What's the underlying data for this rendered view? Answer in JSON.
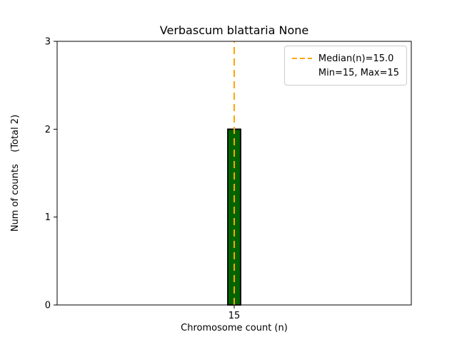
{
  "chart_data": {
    "type": "bar",
    "title": "Verbascum blattaria None",
    "xlabel": "Chromosome count (n)",
    "ylabel": "Num of counts    (Total 2)",
    "categories": [
      "15"
    ],
    "values": [
      2
    ],
    "total_counts": 2,
    "ylim": [
      0,
      3
    ],
    "yticks": [
      0,
      1,
      2,
      3
    ],
    "xticks": [
      "15"
    ],
    "grid": false,
    "bar_color": "#006400",
    "bar_edge_color": "#000000",
    "median_line": {
      "x": "15",
      "value": 15.0,
      "color": "#ffa500",
      "style": "dashed"
    },
    "legend": {
      "position": "upper right",
      "entries": [
        "Median(n)=15.0",
        "Min=15, Max=15"
      ]
    }
  }
}
